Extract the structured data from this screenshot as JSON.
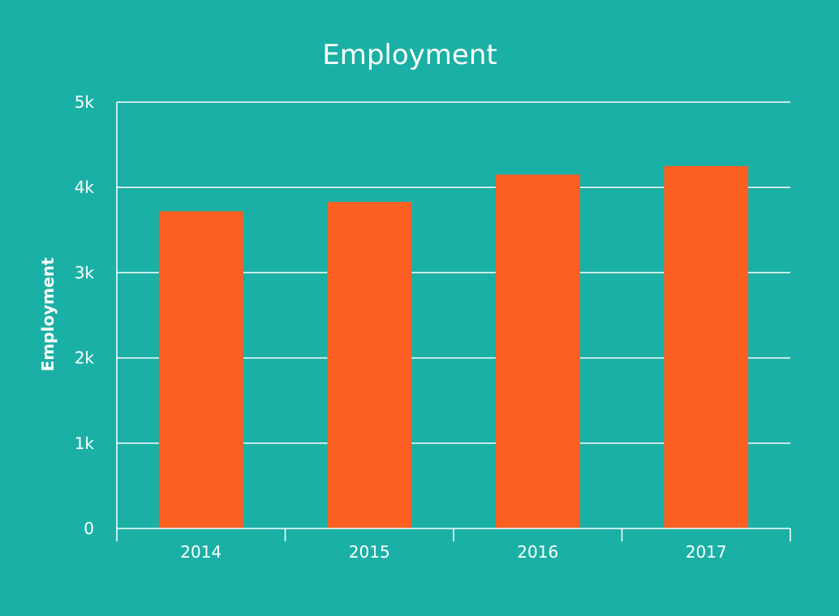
{
  "colors": {
    "background": "#1bb0a5",
    "bar": "#fb5f21",
    "text": "#ffffff",
    "grid": "#ffffff"
  },
  "chart_data": {
    "type": "bar",
    "title": "Employment",
    "xlabel": "",
    "ylabel": "Employment",
    "categories": [
      "2014",
      "2015",
      "2016",
      "2017"
    ],
    "series": [
      {
        "values": [
          3720,
          3830,
          4150,
          4250
        ]
      }
    ],
    "ylim": [
      0,
      5000
    ],
    "yticks": [
      0,
      1000,
      2000,
      3000,
      4000,
      5000
    ],
    "ytick_labels": [
      "0",
      "1k",
      "2k",
      "3k",
      "4k",
      "5k"
    ],
    "grid": true,
    "legend": "none"
  }
}
